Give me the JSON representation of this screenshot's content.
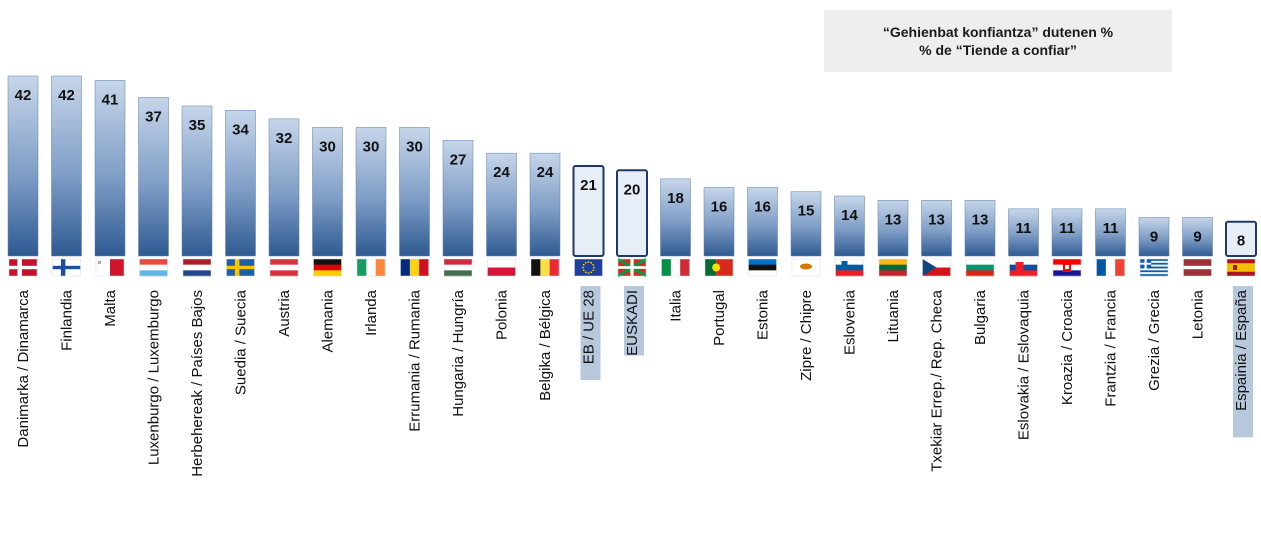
{
  "chart_data": {
    "type": "bar",
    "title_lines": [
      "“Gehienbat konfiantza” dutenen %",
      "% de “Tiende a confiar”"
    ],
    "categories": [
      "Danimarka / Dinamarca",
      "Finlandia",
      "Malta",
      "Luxenburgo / Luxemburgo",
      "Herbehereak / Países Bajos",
      "Suedia / Suecia",
      "Austria",
      "Alemania",
      "Irlanda",
      "Errumania / Rumania",
      "Hungaria / Hungría",
      "Polonia",
      "Belgika / Bélgica",
      "EB / UE 28",
      "EUSKADI",
      "Italia",
      "Portugal",
      "Estonia",
      "Zipre / Chipre",
      "Eslovenia",
      "Lituania",
      "Txekiar Errep./ Rep. Checa",
      "Bulgaria",
      "Eslovakia / Eslovaquia",
      "Kroazia / Croacia",
      "Frantzia / Francia",
      "Grezia / Grecia",
      "Letonia",
      "Espainia / España"
    ],
    "values": [
      42,
      42,
      41,
      37,
      35,
      34,
      32,
      30,
      30,
      30,
      27,
      24,
      24,
      21,
      20,
      18,
      16,
      16,
      15,
      14,
      13,
      13,
      13,
      11,
      11,
      11,
      9,
      9,
      8
    ],
    "highlighted": [
      "EB / UE 28",
      "EUSKADI",
      "Espainia / España"
    ],
    "flags": [
      "dk",
      "fi",
      "mt",
      "lu",
      "nl",
      "se",
      "at",
      "de",
      "ie",
      "ro",
      "hu",
      "pl",
      "be",
      "eu",
      "eus",
      "it",
      "pt",
      "ee",
      "cy",
      "si",
      "lt",
      "cz",
      "bg",
      "sk",
      "hr",
      "fr",
      "gr",
      "lv",
      "es"
    ],
    "colors": {
      "bar_top": "#c6d6ea",
      "bar_bottom": "#2e5a92",
      "highlight_fill": "#e8eef8",
      "highlight_border": "#1f3864",
      "label_highlight_bg": "#b8c8dc"
    },
    "ylim": [
      0,
      42
    ]
  }
}
